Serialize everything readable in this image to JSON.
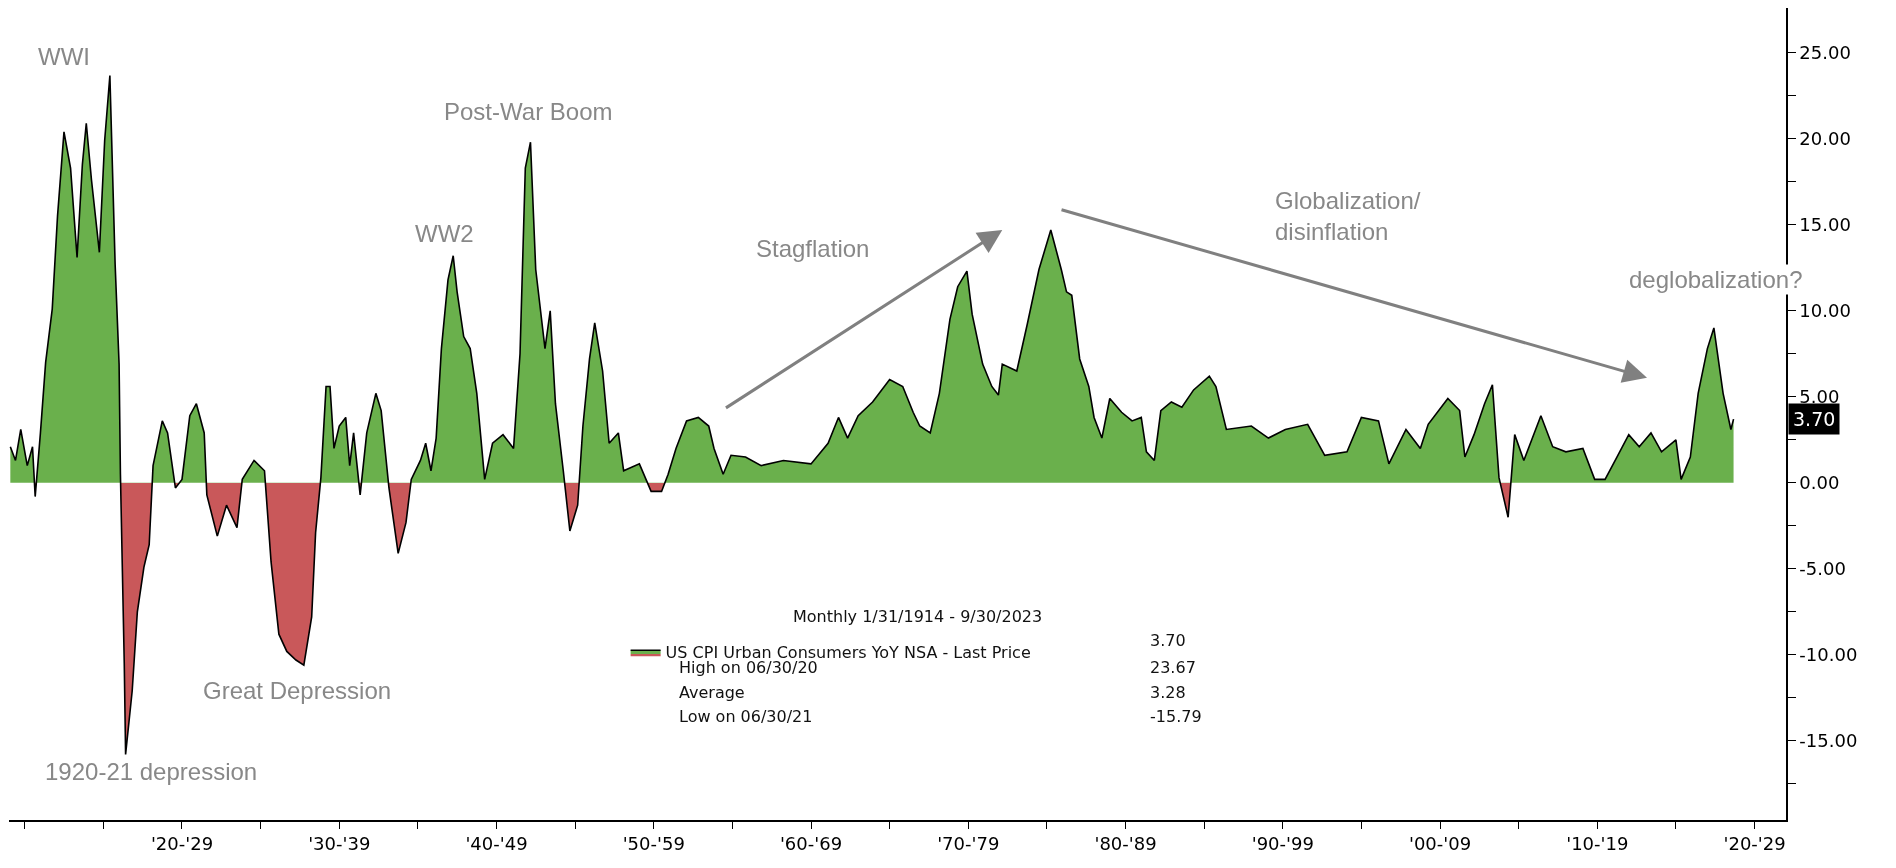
{
  "chart_data": {
    "type": "area",
    "x": [
      "1914-02",
      "1914-06",
      "1914-10",
      "1915-03",
      "1915-07",
      "1915-09",
      "1916-01",
      "1916-05",
      "1916-10",
      "1917-02",
      "1917-07",
      "1917-12",
      "1918-05",
      "1918-09",
      "1918-12",
      "1919-04",
      "1919-10",
      "1920-02",
      "1920-06",
      "1920-10",
      "1921-01",
      "1921-02",
      "1921-05",
      "1921-06",
      "1921-11",
      "1922-03",
      "1922-08",
      "1922-12",
      "1923-03",
      "1923-10",
      "1924-02",
      "1924-08",
      "1925-01",
      "1925-07",
      "1925-12",
      "1926-06",
      "1926-08",
      "1927-04",
      "1927-11",
      "1928-07",
      "1928-11",
      "1929-08",
      "1930-04",
      "1930-09",
      "1931-03",
      "1931-09",
      "1932-04",
      "1932-10",
      "1933-04",
      "1933-07",
      "1933-11",
      "1934-03",
      "1934-06",
      "1934-09",
      "1935-01",
      "1935-06",
      "1935-09",
      "1935-12",
      "1936-05",
      "1936-10",
      "1937-05",
      "1937-09",
      "1938-03",
      "1938-10",
      "1939-04",
      "1939-08",
      "1940-03",
      "1940-07",
      "1940-11",
      "1941-03",
      "1941-07",
      "1941-12",
      "1942-04",
      "1942-07",
      "1942-12",
      "1943-05",
      "1943-10",
      "1944-04",
      "1944-10",
      "1945-06",
      "1946-02",
      "1946-07",
      "1946-11",
      "1947-03",
      "1947-07",
      "1948-02",
      "1948-06",
      "1948-10",
      "1949-04",
      "1949-09",
      "1950-03",
      "1950-07",
      "1950-12",
      "1951-04",
      "1951-10",
      "1952-03",
      "1952-10",
      "1953-02",
      "1954-02",
      "1954-11",
      "1955-07",
      "1955-12",
      "1956-06",
      "1957-02",
      "1957-11",
      "1958-07",
      "1958-11",
      "1959-06",
      "1959-12",
      "1960-11",
      "1961-11",
      "1963-04",
      "1965-01",
      "1966-02",
      "1966-10",
      "1967-05",
      "1968-01",
      "1968-12",
      "1970-01",
      "1970-11",
      "1971-07",
      "1971-12",
      "1972-08",
      "1973-03",
      "1973-11",
      "1974-05",
      "1974-12",
      "1975-04",
      "1975-12",
      "1976-07",
      "1976-12",
      "1977-03",
      "1978-02",
      "1978-10",
      "1979-07",
      "1980-04",
      "1980-12",
      "1981-04",
      "1981-08",
      "1982-02",
      "1982-09",
      "1983-01",
      "1983-07",
      "1984-01",
      "1984-10",
      "1985-06",
      "1986-01",
      "1986-05",
      "1986-11",
      "1987-04",
      "1987-12",
      "1988-08",
      "1989-05",
      "1990-05",
      "1990-10",
      "1991-06",
      "1993-01",
      "1994-02",
      "1995-03",
      "1996-08",
      "1997-09",
      "1999-02",
      "2000-01",
      "2001-02",
      "2001-10",
      "2002-11",
      "2003-10",
      "2004-04",
      "2005-07",
      "2006-04",
      "2006-08",
      "2007-03",
      "2007-11",
      "2008-05",
      "2008-10",
      "2009-05",
      "2009-10",
      "2010-05",
      "2011-06",
      "2012-03",
      "2013-01",
      "2014-02",
      "2014-11",
      "2015-07",
      "2016-04",
      "2017-01",
      "2017-09",
      "2018-06",
      "2019-02",
      "2020-01",
      "2020-05",
      "2020-12",
      "2021-06",
      "2022-01",
      "2022-06",
      "2023-01",
      "2023-07",
      "2023-09"
    ],
    "series": [
      {
        "name": "US CPI Urban Consumers YoY NSA - Last Price",
        "color": "#000000",
        "values": [
          2.1,
          1.3,
          3.1,
          1.0,
          2.1,
          -0.8,
          2.9,
          7.0,
          10.1,
          15.5,
          20.4,
          18.3,
          13.1,
          18.5,
          20.9,
          17.6,
          13.4,
          19.9,
          23.67,
          12.7,
          6.9,
          0.5,
          -10.5,
          -15.79,
          -12.1,
          -7.5,
          -4.9,
          -3.6,
          1.0,
          3.6,
          2.9,
          -0.3,
          0.2,
          3.9,
          4.6,
          2.9,
          -0.7,
          -3.1,
          -1.3,
          -2.6,
          0.2,
          1.3,
          0.7,
          -4.6,
          -8.8,
          -9.8,
          -10.3,
          -10.6,
          -7.8,
          -2.9,
          0.3,
          5.6,
          5.6,
          2.0,
          3.3,
          3.8,
          1.0,
          2.9,
          -0.7,
          2.9,
          5.2,
          4.2,
          -0.3,
          -4.1,
          -2.3,
          0.2,
          1.3,
          2.3,
          0.7,
          2.6,
          7.8,
          11.8,
          13.2,
          11.1,
          8.5,
          7.8,
          5.2,
          0.2,
          2.3,
          2.8,
          2.0,
          7.5,
          18.3,
          19.8,
          12.4,
          7.8,
          10.0,
          4.6,
          0.7,
          -2.8,
          -1.3,
          3.3,
          7.2,
          9.3,
          6.5,
          2.3,
          2.9,
          0.7,
          1.1,
          -0.5,
          -0.5,
          0.5,
          2.0,
          3.6,
          3.8,
          3.3,
          2.0,
          0.5,
          1.6,
          1.5,
          1.0,
          1.3,
          1.1,
          2.3,
          3.8,
          2.6,
          3.9,
          4.7,
          6.0,
          5.6,
          4.1,
          3.3,
          2.9,
          5.2,
          9.5,
          11.4,
          12.3,
          9.8,
          6.9,
          5.6,
          5.1,
          6.9,
          6.5,
          9.2,
          12.4,
          14.7,
          12.4,
          11.1,
          10.9,
          7.2,
          5.6,
          3.8,
          2.6,
          4.9,
          4.1,
          3.6,
          3.8,
          1.8,
          1.3,
          4.2,
          4.7,
          4.4,
          5.4,
          6.2,
          5.6,
          3.1,
          3.3,
          2.6,
          3.1,
          3.4,
          1.6,
          1.8,
          3.8,
          3.6,
          1.1,
          3.1,
          2.0,
          3.4,
          4.9,
          4.2,
          1.5,
          2.8,
          4.6,
          5.7,
          0.3,
          -2.0,
          2.8,
          1.3,
          3.9,
          2.1,
          1.8,
          2.0,
          0.2,
          0.2,
          1.5,
          2.8,
          2.1,
          2.9,
          1.8,
          2.5,
          0.2,
          1.5,
          5.2,
          7.8,
          9.0,
          5.2,
          3.1,
          3.7
        ]
      }
    ],
    "colors": [
      "#6ab04c",
      "#c9585a"
    ],
    "xlim": [
      "1914-01",
      "2027-01"
    ],
    "xticks": [
      {
        "value": "1915-01",
        "label": null
      },
      {
        "value": "1920-01",
        "label": null
      },
      {
        "value": "1925-01",
        "label": "'20-'29"
      },
      {
        "value": "1930-01",
        "label": null
      },
      {
        "value": "1935-01",
        "label": "'30-'39"
      },
      {
        "value": "1940-01",
        "label": null
      },
      {
        "value": "1945-01",
        "label": "'40-'49"
      },
      {
        "value": "1950-01",
        "label": null
      },
      {
        "value": "1955-01",
        "label": "'50-'59"
      },
      {
        "value": "1960-01",
        "label": null
      },
      {
        "value": "1965-01",
        "label": "'60-'69"
      },
      {
        "value": "1970-01",
        "label": null
      },
      {
        "value": "1975-01",
        "label": "'70-'79"
      },
      {
        "value": "1980-01",
        "label": null
      },
      {
        "value": "1985-01",
        "label": "'80-'89"
      },
      {
        "value": "1990-01",
        "label": null
      },
      {
        "value": "1995-01",
        "label": "'90-'99"
      },
      {
        "value": "2000-01",
        "label": null
      },
      {
        "value": "2005-01",
        "label": "'00-'09"
      },
      {
        "value": "2010-01",
        "label": null
      },
      {
        "value": "2015-01",
        "label": "'10-'19"
      },
      {
        "value": "2020-01",
        "label": null
      },
      {
        "value": "2025-01",
        "label": "'20-'29"
      }
    ],
    "ylim": [
      -19.6,
      27.6
    ],
    "yticks": [
      {
        "value": -17.5,
        "label": null
      },
      {
        "value": -15,
        "label": "-15.00"
      },
      {
        "value": -12.5,
        "label": null
      },
      {
        "value": -10,
        "label": "-10.00"
      },
      {
        "value": -7.5,
        "label": null
      },
      {
        "value": -5,
        "label": "-5.00"
      },
      {
        "value": -2.5,
        "label": null
      },
      {
        "value": 0,
        "label": "0.00"
      },
      {
        "value": 2.5,
        "label": null
      },
      {
        "value": 5,
        "label": "5.00"
      },
      {
        "value": 7.5,
        "label": null
      },
      {
        "value": 10,
        "label": "10.00"
      },
      {
        "value": 12.5,
        "label": null
      },
      {
        "value": 15,
        "label": "15.00"
      },
      {
        "value": 17.5,
        "label": null
      },
      {
        "value": 20,
        "label": "20.00"
      },
      {
        "value": 22.5,
        "label": null
      },
      {
        "value": 25,
        "label": "25.00"
      }
    ],
    "legend": "bottom",
    "legend_title": "Monthly 1/31/1914 - 9/30/2023",
    "annotations": [
      "WWI",
      "Post-War Boom",
      "WW2",
      "Stagflation",
      "Globalization/\ndisinflation",
      "deglobalization?",
      "Great Depression",
      "1920-21 depression",
      "3.70",
      "3.70",
      "High on 06/30/20",
      "23.67",
      "Average",
      "3.28",
      "Low on 06/30/21",
      "-15.79"
    ]
  }
}
